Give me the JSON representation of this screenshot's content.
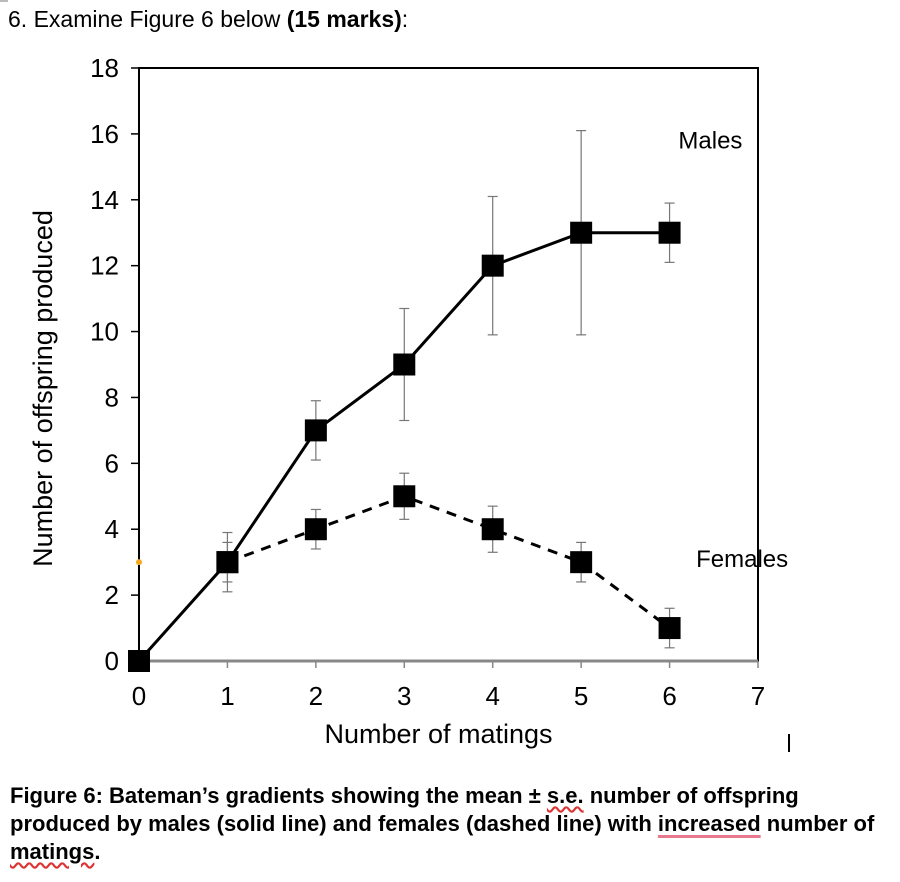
{
  "question": {
    "prefix": "6.  Examine Figure 6 below ",
    "marks": "(15 marks)",
    "suffix": ":"
  },
  "chart_data": {
    "type": "line",
    "title": "",
    "xlabel": "Number of matings",
    "ylabel": "Number of offspring produced",
    "xlim": [
      0,
      7
    ],
    "ylim": [
      0,
      18
    ],
    "xticks": [
      "0",
      "1",
      "2",
      "3",
      "4",
      "5",
      "6",
      "7"
    ],
    "yticks": [
      "0",
      "2",
      "4",
      "6",
      "8",
      "10",
      "12",
      "14",
      "16",
      "18"
    ],
    "grid": false,
    "series": [
      {
        "name": "Males",
        "line_style": "solid",
        "x": [
          0,
          1,
          2,
          3,
          4,
          5,
          6
        ],
        "y": [
          0,
          3,
          7,
          9,
          12,
          13,
          13
        ],
        "err": [
          0,
          0.9,
          0.9,
          1.7,
          2.1,
          3.1,
          0.9
        ]
      },
      {
        "name": "Females",
        "line_style": "dashed",
        "x": [
          1,
          2,
          3,
          4,
          5,
          6
        ],
        "y": [
          3,
          4,
          5,
          4,
          3,
          1
        ],
        "err": [
          0.6,
          0.6,
          0.7,
          0.7,
          0.6,
          0.6
        ]
      }
    ],
    "annotations": [
      {
        "text": "Males",
        "x": 6.1,
        "y": 15.8
      },
      {
        "text": "Females",
        "x": 6.3,
        "y": 3.1
      }
    ]
  },
  "caption": {
    "lead": "Figure 6: Bateman’s gradients showing the mean ± ",
    "se": "s.e.",
    "mid": " number of offspring produced by males (solid line) and females (dashed line) with ",
    "increased": "increased",
    "mid2": " number of ",
    "matings": "matings",
    "end": "."
  }
}
